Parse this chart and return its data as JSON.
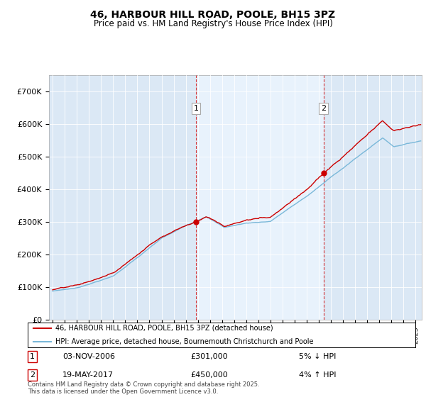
{
  "title_line1": "46, HARBOUR HILL ROAD, POOLE, BH15 3PZ",
  "title_line2": "Price paid vs. HM Land Registry's House Price Index (HPI)",
  "legend_line1": "46, HARBOUR HILL ROAD, POOLE, BH15 3PZ (detached house)",
  "legend_line2": "HPI: Average price, detached house, Bournemouth Christchurch and Poole",
  "annotation1_label": "1",
  "annotation1_date": "03-NOV-2006",
  "annotation1_price": "£301,000",
  "annotation1_hpi": "5% ↓ HPI",
  "annotation2_label": "2",
  "annotation2_date": "19-MAY-2017",
  "annotation2_price": "£450,000",
  "annotation2_hpi": "4% ↑ HPI",
  "vline1_x": 2006.84,
  "vline2_x": 2017.38,
  "sale1_price": 301000,
  "sale2_price": 450000,
  "note": "Contains HM Land Registry data © Crown copyright and database right 2025.\nThis data is licensed under the Open Government Licence v3.0.",
  "hpi_color": "#7ab8d9",
  "price_color": "#cc0000",
  "vline_color": "#cc0000",
  "bg_color": "#dbe8f5",
  "highlight_color": "#e8f2fc",
  "ylim": [
    0,
    750000
  ],
  "xlim_start": 1994.7,
  "xlim_end": 2025.5,
  "yticks": [
    0,
    100000,
    200000,
    300000,
    400000,
    500000,
    600000,
    700000
  ],
  "ylabels": [
    "£0",
    "£100K",
    "£200K",
    "£300K",
    "£400K",
    "£500K",
    "£600K",
    "£700K"
  ]
}
